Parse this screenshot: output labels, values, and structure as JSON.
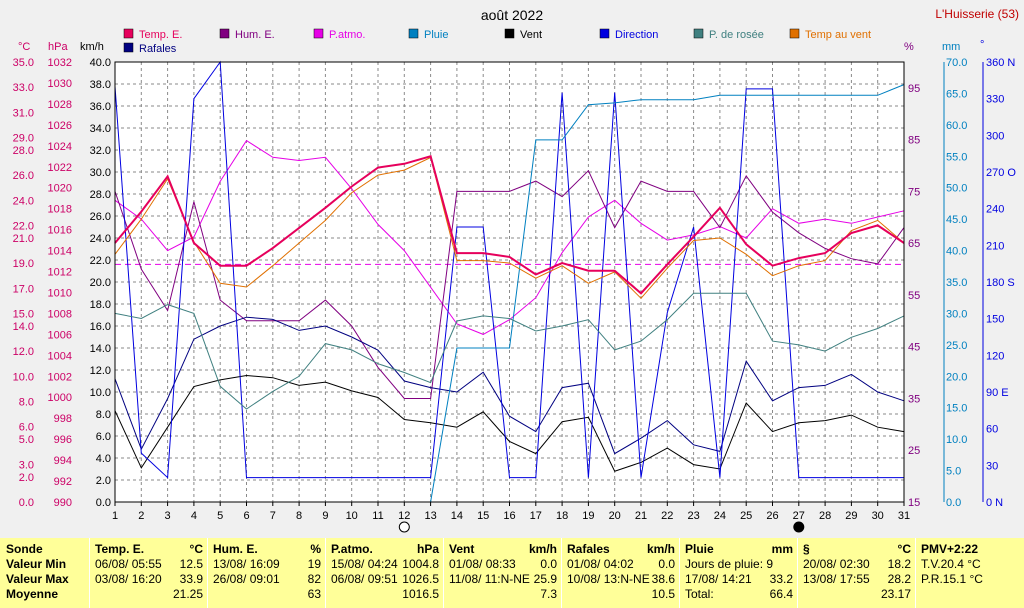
{
  "header": {
    "title": "août 2022",
    "station": "L'Huisserie (53)"
  },
  "legend": [
    {
      "label": "Temp. E.",
      "color": "#e6005c"
    },
    {
      "label": "Hum. E.",
      "color": "#800080"
    },
    {
      "label": "P.atmo.",
      "color": "#e600e6"
    },
    {
      "label": "Pluie",
      "color": "#0080c0"
    },
    {
      "label": "Vent",
      "color": "#000000"
    },
    {
      "label": "Direction",
      "color": "#0000e0"
    },
    {
      "label": "P. de rosée",
      "color": "#408080"
    },
    {
      "label": "Temp au vent",
      "color": "#e07000"
    },
    {
      "label": "Rafales",
      "color": "#000080"
    }
  ],
  "axis_units": {
    "temp": "°C",
    "press": "hPa",
    "wind": "km/h",
    "hum": "%",
    "rain": "mm",
    "dir": "°"
  },
  "chart_data": {
    "type": "line",
    "x": [
      1,
      2,
      3,
      4,
      5,
      6,
      7,
      8,
      9,
      10,
      11,
      12,
      13,
      14,
      15,
      16,
      17,
      18,
      19,
      20,
      21,
      22,
      23,
      24,
      25,
      26,
      27,
      28,
      29,
      30,
      31
    ],
    "xlim": [
      1,
      31
    ],
    "grid": true,
    "axes": {
      "temp": {
        "range": [
          0,
          35
        ],
        "ticks": [
          0.0,
          2.0,
          3.0,
          5.0,
          6.0,
          8.0,
          10.0,
          12.0,
          14.0,
          15.0,
          17.0,
          19.0,
          21.0,
          22.0,
          24.0,
          26.0,
          28.0,
          29.0,
          31.0,
          33.0,
          35.0
        ]
      },
      "press": {
        "range": [
          990,
          1032
        ],
        "ticks": [
          990,
          992,
          994,
          996,
          998,
          1000,
          1002,
          1004,
          1006,
          1008,
          1010,
          1012,
          1014,
          1016,
          1018,
          1020,
          1022,
          1024,
          1026,
          1028,
          1030,
          1032
        ]
      },
      "wind": {
        "range": [
          0,
          40
        ],
        "ticks": [
          0.0,
          2.0,
          4.0,
          6.0,
          8.0,
          10.0,
          12.0,
          14.0,
          16.0,
          18.0,
          20.0,
          22.0,
          24.0,
          26.0,
          28.0,
          30.0,
          32.0,
          34.0,
          36.0,
          38.0,
          40.0
        ]
      },
      "hum": {
        "range": [
          15,
          100
        ],
        "ticks": [
          15,
          25,
          35,
          45,
          55,
          65,
          75,
          85,
          95
        ]
      },
      "rain": {
        "range": [
          0,
          70
        ],
        "ticks": [
          0.0,
          5.0,
          10.0,
          15.0,
          20.0,
          25.0,
          30.0,
          35.0,
          40.0,
          45.0,
          50.0,
          55.0,
          60.0,
          65.0,
          70.0
        ]
      },
      "dir": {
        "range": [
          0,
          360
        ],
        "ticks": [
          {
            "v": 0,
            "l": "0  N"
          },
          {
            "v": 30,
            "l": "30"
          },
          {
            "v": 60,
            "l": "60"
          },
          {
            "v": 90,
            "l": "90  E"
          },
          {
            "v": 120,
            "l": "120"
          },
          {
            "v": 150,
            "l": "150"
          },
          {
            "v": 180,
            "l": "180 S"
          },
          {
            "v": 210,
            "l": "210"
          },
          {
            "v": 240,
            "l": "240"
          },
          {
            "v": 270,
            "l": "270 O"
          },
          {
            "v": 300,
            "l": "300"
          },
          {
            "v": 330,
            "l": "330"
          },
          {
            "v": 360,
            "l": "360 N"
          }
        ]
      }
    },
    "reference_line": {
      "axis": "temp",
      "value": 18.9
    },
    "moon_phases": [
      {
        "x": 12,
        "phase": "full"
      },
      {
        "x": 27,
        "phase": "new"
      }
    ],
    "series": [
      {
        "name": "P.atmo.",
        "axis": "press",
        "color": "#e600e6",
        "values": [
          1018.8,
          1017.0,
          1014.0,
          1015.3,
          1020.6,
          1024.5,
          1022.9,
          1022.6,
          1022.9,
          1019.9,
          1016.5,
          1014.0,
          1010.5,
          1007.0,
          1006.0,
          1007.4,
          1009.5,
          1013.8,
          1017.2,
          1018.8,
          1016.6,
          1015.0,
          1015.5,
          1016.3,
          1015.2,
          1018.0,
          1016.6,
          1017.0,
          1016.6,
          1017.2,
          1017.8
        ]
      },
      {
        "name": "Hum. E.",
        "axis": "hum",
        "color": "#800080",
        "values": [
          75,
          60,
          52,
          73,
          54,
          50,
          50,
          50,
          54,
          49,
          41,
          35,
          35,
          75,
          75,
          75,
          77,
          74,
          79,
          68,
          77,
          75,
          75,
          68,
          78,
          71,
          67,
          64,
          62,
          61,
          68
        ]
      },
      {
        "name": "Vent",
        "axis": "wind",
        "color": "#000000",
        "values": [
          8.3,
          3.1,
          6.8,
          10.5,
          11.1,
          11.5,
          11.3,
          10.6,
          10.9,
          10.1,
          9.5,
          7.5,
          7.2,
          6.8,
          8.2,
          5.5,
          4.4,
          7.3,
          7.7,
          2.8,
          3.6,
          4.9,
          3.4,
          3.0,
          9.0,
          6.4,
          7.2,
          7.4,
          7.9,
          6.8,
          6.4
        ]
      },
      {
        "name": "Rafales",
        "axis": "wind",
        "color": "#000080",
        "values": [
          11.2,
          4.8,
          9.4,
          14.8,
          16.0,
          16.8,
          16.6,
          15.6,
          16.0,
          15.0,
          13.8,
          11.0,
          10.4,
          10.0,
          11.8,
          7.8,
          6.4,
          10.4,
          10.8,
          4.4,
          5.8,
          7.4,
          5.2,
          4.6,
          12.8,
          9.2,
          10.4,
          10.6,
          11.6,
          10.0,
          9.2
        ]
      },
      {
        "name": "Direction",
        "axis": "dir",
        "color": "#0000e0",
        "values": [
          340,
          40,
          20,
          330,
          360,
          20,
          20,
          20,
          20,
          20,
          20,
          20,
          20,
          225,
          225,
          20,
          20,
          335,
          20,
          335,
          20,
          155,
          225,
          20,
          338,
          338,
          20,
          20,
          20,
          20,
          20
        ]
      },
      {
        "name": "Pluie",
        "axis": "rain",
        "color": "#0080c0",
        "values": [
          0,
          0,
          0,
          0,
          0,
          0,
          0,
          0,
          0,
          0,
          0,
          0,
          0,
          24.5,
          24.5,
          24.5,
          57.6,
          57.6,
          63.2,
          63.5,
          64.0,
          64.0,
          64.0,
          64.7,
          64.7,
          64.7,
          64.7,
          64.7,
          64.7,
          64.7,
          66.4
        ]
      },
      {
        "name": "P. de rosée",
        "axis": "temp",
        "color": "#408080",
        "values": [
          15.0,
          14.6,
          15.7,
          15.0,
          9.2,
          7.4,
          8.8,
          10.0,
          12.6,
          12.1,
          11.0,
          10.3,
          9.5,
          14.4,
          14.8,
          14.6,
          13.6,
          14.0,
          14.5,
          12.1,
          12.8,
          14.5,
          16.6,
          16.6,
          16.6,
          12.8,
          12.5,
          12.0,
          13.1,
          13.8,
          14.8
        ]
      },
      {
        "name": "Temp au vent",
        "axis": "temp",
        "color": "#e07000",
        "values": [
          19.7,
          22.5,
          25.7,
          20.7,
          17.4,
          17.1,
          18.8,
          20.6,
          22.4,
          24.6,
          26.0,
          26.4,
          27.4,
          19.2,
          19.2,
          19.0,
          17.8,
          18.8,
          17.4,
          18.3,
          16.2,
          18.6,
          20.8,
          21.0,
          19.7,
          18.0,
          18.8,
          19.2,
          21.6,
          22.4,
          20.6
        ]
      },
      {
        "name": "Temp. E.",
        "axis": "temp",
        "color": "#e6005c",
        "values": [
          20.6,
          23.1,
          25.9,
          20.6,
          18.8,
          18.8,
          20.2,
          21.8,
          23.4,
          25.1,
          26.6,
          26.9,
          27.5,
          19.8,
          19.8,
          19.5,
          18.1,
          19.0,
          18.4,
          18.4,
          16.6,
          18.9,
          21.1,
          23.4,
          20.5,
          18.8,
          19.4,
          19.8,
          21.4,
          22.0,
          20.6
        ]
      }
    ]
  },
  "summary": {
    "rows": [
      "Sonde",
      "Valeur Min",
      "Valeur Max",
      "Moyenne"
    ],
    "panels": [
      {
        "title": "Temp. E.",
        "unit": "°C",
        "lines": [
          [
            "06/08/  05:55",
            "12.5"
          ],
          [
            "03/08/  16:20",
            "33.9"
          ],
          [
            "",
            "21.25"
          ]
        ]
      },
      {
        "title": "Hum. E.",
        "unit": "%",
        "lines": [
          [
            "13/08/  16:09",
            "19"
          ],
          [
            "26/08/  09:01",
            "82"
          ],
          [
            "",
            "63"
          ]
        ]
      },
      {
        "title": "P.atmo.",
        "unit": "hPa",
        "lines": [
          [
            "15/08/  04:24",
            "1004.8"
          ],
          [
            "06/08/  09:51",
            "1026.5"
          ],
          [
            "",
            "1016.5"
          ]
        ]
      },
      {
        "title": "Vent",
        "unit": "km/h",
        "lines": [
          [
            "01/08/  08:33",
            "0.0"
          ],
          [
            "11/08/  11:N-NE",
            "25.9"
          ],
          [
            "",
            "7.3"
          ]
        ]
      },
      {
        "title": "Rafales",
        "unit": "km/h",
        "lines": [
          [
            "01/08/  04:02",
            "0.0"
          ],
          [
            "10/08/  13:N-NE",
            "38.6"
          ],
          [
            "",
            "10.5"
          ]
        ]
      },
      {
        "title": "Pluie",
        "unit": "mm",
        "lines": [
          [
            "Jours de pluie: 9",
            ""
          ],
          [
            "17/08/  14:21",
            "33.2"
          ],
          [
            "Total:",
            "66.4"
          ]
        ]
      },
      {
        "title": "§",
        "unit": "°C",
        "lines": [
          [
            "20/08/  02:30",
            "18.2"
          ],
          [
            "13/08/  17:55",
            "28.2"
          ],
          [
            "",
            "23.17"
          ]
        ]
      },
      {
        "title": "PMV+2:22",
        "unit": "",
        "lines": [
          [
            "T.V.20.4 °C",
            ""
          ],
          [
            "P.R.15.1 °C",
            ""
          ],
          [
            "",
            ""
          ]
        ]
      }
    ]
  }
}
